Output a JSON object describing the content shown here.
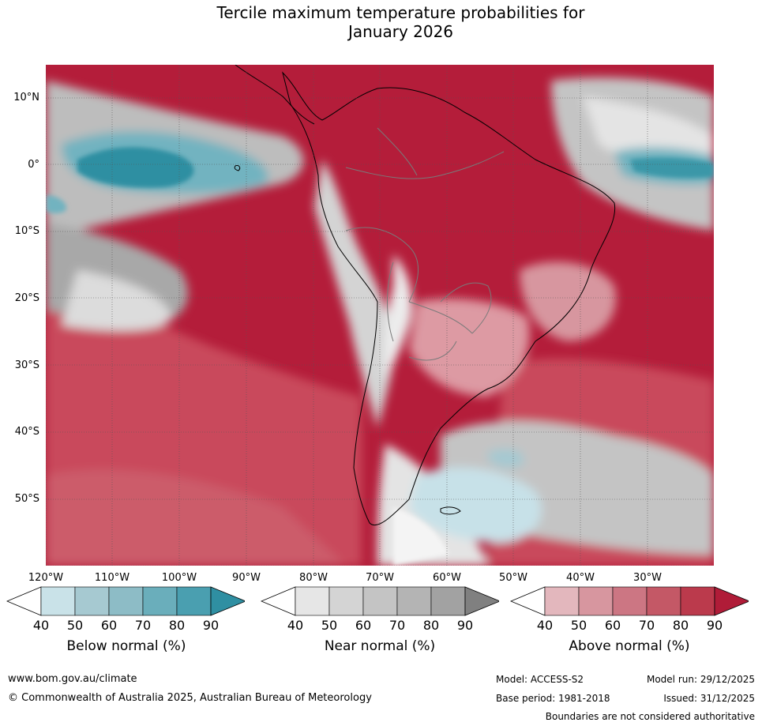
{
  "title": {
    "line1": "Tercile maximum temperature probabilities for",
    "line2": "January 2026"
  },
  "map": {
    "region": "South America",
    "lat_labels": [
      "10°N",
      "0°",
      "10°S",
      "20°S",
      "30°S",
      "40°S",
      "50°S"
    ],
    "lon_labels": [
      "120°W",
      "110°W",
      "100°W",
      "90°W",
      "80°W",
      "70°W",
      "60°W",
      "50°W",
      "40°W",
      "30°W"
    ]
  },
  "colorbars": [
    {
      "label": "Below normal (%)",
      "ticks": [
        "40",
        "50",
        "60",
        "70",
        "80",
        "90"
      ],
      "colors": [
        "#ffffff",
        "#c9e2e8",
        "#a6c9d1",
        "#8dbcc6",
        "#6aaebb",
        "#4a9fb0",
        "#2f8fa2"
      ]
    },
    {
      "label": "Near normal (%)",
      "ticks": [
        "40",
        "50",
        "60",
        "70",
        "80",
        "90"
      ],
      "colors": [
        "#ffffff",
        "#e6e6e6",
        "#d4d4d4",
        "#c4c4c4",
        "#b4b4b4",
        "#a2a2a2",
        "#808080"
      ]
    },
    {
      "label": "Above normal (%)",
      "ticks": [
        "40",
        "50",
        "60",
        "70",
        "80",
        "90"
      ],
      "colors": [
        "#ffffff",
        "#e3b7bd",
        "#d7969f",
        "#cc7683",
        "#c45866",
        "#bb3a4c",
        "#b01c38"
      ]
    }
  ],
  "palette": {
    "above_high": "#b41d3a",
    "above_mid": "#c94a5c",
    "above_low": "#dd9aa3",
    "near_light": "#e4e4e4",
    "near_mid": "#bdbdbd",
    "near_dark": "#9c9c9c",
    "below_light": "#c7e1e8",
    "below_mid": "#72b3c0",
    "below_dark": "#2e8fa2"
  },
  "footer": {
    "website": "www.bom.gov.au/climate",
    "copyright": "© Commonwealth of Australia 2025, Australian Bureau of Meteorology",
    "model": "Model: ACCESS-S2",
    "base_period": "Base period: 1981-2018",
    "model_run": "Model run: 29/12/2025",
    "issued": "Issued: 31/12/2025",
    "disclaimer": "Boundaries are not considered authoritative"
  }
}
